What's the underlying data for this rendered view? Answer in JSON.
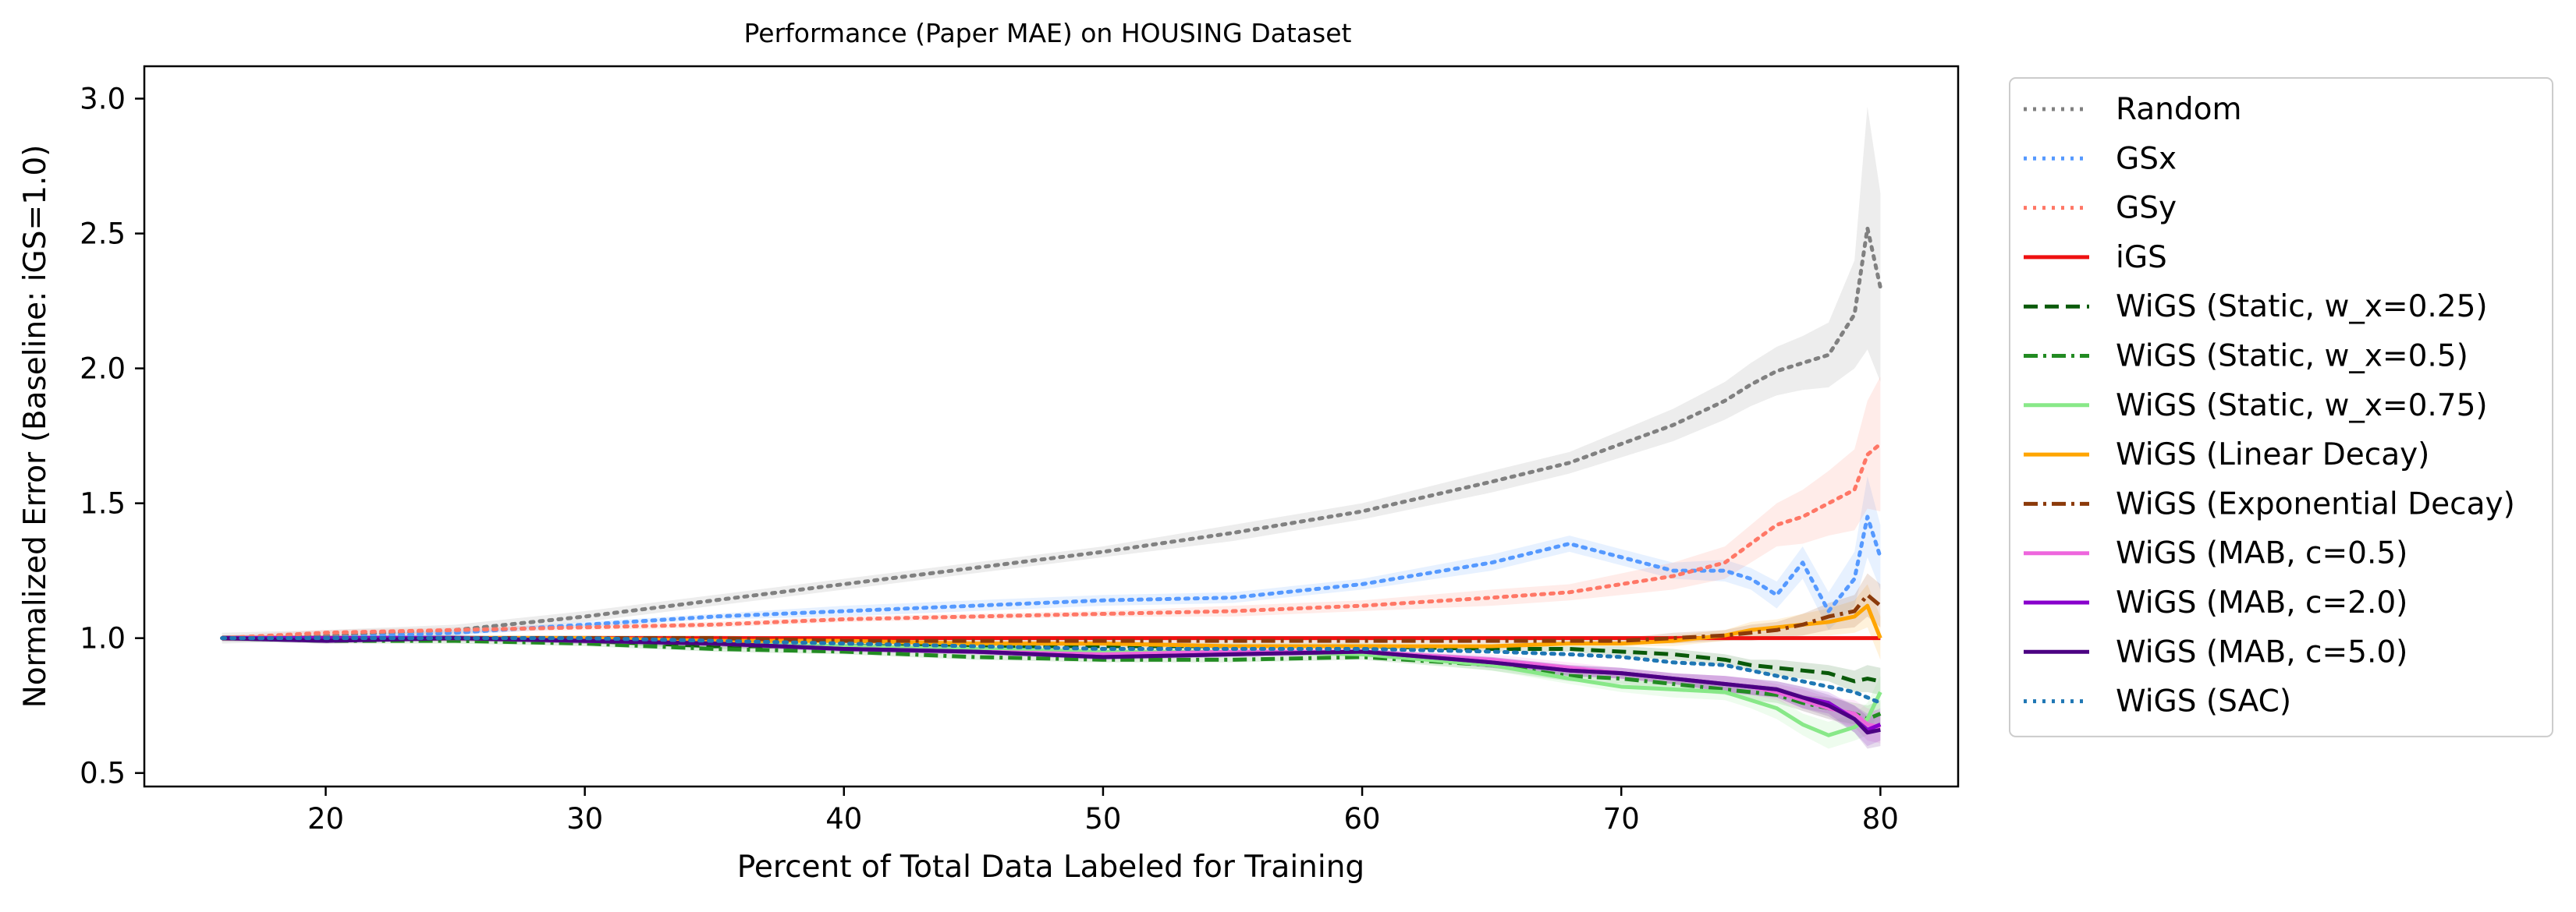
{
  "chart_data": {
    "type": "line",
    "title": "Performance (Paper MAE) on HOUSING Dataset",
    "xlabel": "Percent of Total Data Labeled for Training",
    "ylabel": "Normalized Error (Baseline: iGS=1.0)",
    "xlim": [
      13,
      83
    ],
    "ylim": [
      0.45,
      3.12
    ],
    "xticks": [
      20,
      30,
      40,
      50,
      60,
      70,
      80
    ],
    "yticks": [
      0.5,
      1.0,
      1.5,
      2.0,
      2.5,
      3.0
    ],
    "ytick_labels": [
      "0.5",
      "1.0",
      "1.5",
      "2.0",
      "2.5",
      "3.0"
    ],
    "grid": false,
    "legend_position": "outside-right",
    "x": [
      16,
      20,
      25,
      30,
      35,
      40,
      45,
      50,
      55,
      60,
      65,
      68,
      70,
      72,
      74,
      75,
      76,
      77,
      78,
      79,
      79.5,
      80
    ],
    "series": [
      {
        "name": "Random",
        "color": "#808080",
        "style": "dotted",
        "values": [
          1.0,
          1.01,
          1.03,
          1.08,
          1.14,
          1.2,
          1.26,
          1.32,
          1.39,
          1.47,
          1.58,
          1.65,
          1.72,
          1.79,
          1.88,
          1.94,
          1.99,
          2.02,
          2.05,
          2.2,
          2.52,
          2.3
        ],
        "band": [
          0.02,
          0.02,
          0.02,
          0.02,
          0.02,
          0.02,
          0.02,
          0.02,
          0.03,
          0.03,
          0.04,
          0.04,
          0.05,
          0.06,
          0.07,
          0.08,
          0.09,
          0.1,
          0.12,
          0.2,
          0.45,
          0.35
        ]
      },
      {
        "name": "GSx",
        "color": "#5599ff",
        "style": "dotted",
        "values": [
          1.0,
          1.0,
          1.02,
          1.05,
          1.08,
          1.1,
          1.12,
          1.14,
          1.15,
          1.2,
          1.28,
          1.35,
          1.3,
          1.25,
          1.25,
          1.22,
          1.16,
          1.28,
          1.1,
          1.22,
          1.45,
          1.3
        ],
        "band": [
          0.01,
          0.01,
          0.01,
          0.01,
          0.01,
          0.02,
          0.02,
          0.02,
          0.02,
          0.02,
          0.03,
          0.03,
          0.03,
          0.03,
          0.04,
          0.04,
          0.05,
          0.06,
          0.07,
          0.1,
          0.15,
          0.12
        ]
      },
      {
        "name": "GSy",
        "color": "#ff7766",
        "style": "dotted",
        "values": [
          1.0,
          1.02,
          1.03,
          1.04,
          1.05,
          1.07,
          1.08,
          1.09,
          1.1,
          1.12,
          1.15,
          1.17,
          1.2,
          1.23,
          1.28,
          1.35,
          1.42,
          1.45,
          1.5,
          1.55,
          1.68,
          1.72
        ],
        "band": [
          0.01,
          0.01,
          0.01,
          0.01,
          0.01,
          0.01,
          0.01,
          0.01,
          0.02,
          0.02,
          0.03,
          0.03,
          0.04,
          0.05,
          0.06,
          0.07,
          0.08,
          0.1,
          0.12,
          0.15,
          0.2,
          0.25
        ]
      },
      {
        "name": "iGS",
        "color": "#ee1111",
        "style": "solid",
        "values": [
          1.0,
          1.0,
          1.0,
          1.0,
          1.0,
          1.0,
          1.0,
          1.0,
          1.0,
          1.0,
          1.0,
          1.0,
          1.0,
          1.0,
          1.0,
          1.0,
          1.0,
          1.0,
          1.0,
          1.0,
          1.0,
          1.0
        ],
        "band": null
      },
      {
        "name": "WiGS (Static, w_x=0.25)",
        "color": "#0a5a0a",
        "style": "dashed",
        "values": [
          1.0,
          1.0,
          1.0,
          0.99,
          0.97,
          0.97,
          0.97,
          0.97,
          0.97,
          0.97,
          0.96,
          0.96,
          0.95,
          0.94,
          0.92,
          0.9,
          0.89,
          0.88,
          0.87,
          0.84,
          0.85,
          0.84
        ],
        "band": [
          0.01,
          0.01,
          0.01,
          0.01,
          0.01,
          0.01,
          0.01,
          0.01,
          0.01,
          0.01,
          0.01,
          0.01,
          0.02,
          0.02,
          0.02,
          0.02,
          0.03,
          0.03,
          0.03,
          0.04,
          0.05,
          0.05
        ]
      },
      {
        "name": "WiGS (Static, w_x=0.5)",
        "color": "#228b22",
        "style": "dashdot",
        "values": [
          1.0,
          0.99,
          0.99,
          0.98,
          0.96,
          0.95,
          0.93,
          0.92,
          0.92,
          0.93,
          0.9,
          0.86,
          0.85,
          0.83,
          0.81,
          0.8,
          0.79,
          0.76,
          0.74,
          0.72,
          0.7,
          0.72
        ],
        "band": [
          0.01,
          0.01,
          0.01,
          0.01,
          0.01,
          0.01,
          0.01,
          0.01,
          0.01,
          0.01,
          0.02,
          0.02,
          0.02,
          0.02,
          0.02,
          0.03,
          0.03,
          0.03,
          0.04,
          0.04,
          0.05,
          0.05
        ]
      },
      {
        "name": "WiGS (Static, w_x=0.75)",
        "color": "#88e888",
        "style": "solid",
        "values": [
          1.0,
          1.0,
          1.0,
          0.99,
          0.98,
          0.97,
          0.96,
          0.95,
          0.95,
          0.94,
          0.9,
          0.85,
          0.82,
          0.81,
          0.8,
          0.77,
          0.74,
          0.68,
          0.64,
          0.67,
          0.7,
          0.8
        ],
        "band": [
          0.01,
          0.01,
          0.01,
          0.01,
          0.01,
          0.01,
          0.01,
          0.01,
          0.01,
          0.01,
          0.02,
          0.02,
          0.02,
          0.03,
          0.03,
          0.03,
          0.04,
          0.04,
          0.05,
          0.05,
          0.06,
          0.06
        ]
      },
      {
        "name": "WiGS (Linear Decay)",
        "color": "#ffa500",
        "style": "solid",
        "values": [
          1.0,
          1.0,
          1.0,
          1.0,
          0.99,
          0.99,
          0.98,
          0.98,
          0.97,
          0.97,
          0.97,
          0.98,
          0.98,
          0.99,
          1.01,
          1.03,
          1.04,
          1.05,
          1.06,
          1.08,
          1.12,
          1.0
        ],
        "band": [
          0.01,
          0.01,
          0.01,
          0.01,
          0.01,
          0.01,
          0.01,
          0.01,
          0.01,
          0.01,
          0.01,
          0.01,
          0.01,
          0.02,
          0.02,
          0.03,
          0.03,
          0.04,
          0.05,
          0.06,
          0.08,
          0.08
        ]
      },
      {
        "name": "WiGS (Exponential Decay)",
        "color": "#8b3a0a",
        "style": "dashdot",
        "values": [
          1.0,
          1.0,
          1.0,
          1.0,
          1.0,
          0.99,
          0.99,
          0.99,
          0.99,
          0.99,
          0.99,
          0.99,
          0.99,
          1.0,
          1.01,
          1.02,
          1.03,
          1.05,
          1.08,
          1.1,
          1.16,
          1.12
        ],
        "band": [
          0.01,
          0.01,
          0.01,
          0.01,
          0.01,
          0.01,
          0.01,
          0.01,
          0.01,
          0.01,
          0.01,
          0.01,
          0.01,
          0.02,
          0.02,
          0.03,
          0.03,
          0.04,
          0.05,
          0.06,
          0.08,
          0.08
        ]
      },
      {
        "name": "WiGS (MAB, c=0.5)",
        "color": "#ee66dd",
        "style": "solid",
        "values": [
          1.0,
          1.0,
          1.0,
          0.99,
          0.98,
          0.96,
          0.95,
          0.94,
          0.95,
          0.95,
          0.92,
          0.89,
          0.87,
          0.85,
          0.83,
          0.82,
          0.8,
          0.77,
          0.74,
          0.72,
          0.68,
          0.67
        ],
        "band": [
          0.01,
          0.01,
          0.01,
          0.01,
          0.01,
          0.01,
          0.01,
          0.01,
          0.01,
          0.01,
          0.02,
          0.02,
          0.02,
          0.02,
          0.03,
          0.03,
          0.03,
          0.04,
          0.04,
          0.05,
          0.06,
          0.06
        ]
      },
      {
        "name": "WiGS (MAB, c=2.0)",
        "color": "#8800cc",
        "style": "solid",
        "values": [
          1.0,
          1.0,
          1.0,
          0.99,
          0.98,
          0.96,
          0.95,
          0.93,
          0.94,
          0.95,
          0.91,
          0.88,
          0.87,
          0.85,
          0.83,
          0.82,
          0.81,
          0.78,
          0.76,
          0.7,
          0.66,
          0.68
        ],
        "band": [
          0.01,
          0.01,
          0.01,
          0.01,
          0.01,
          0.01,
          0.01,
          0.01,
          0.01,
          0.01,
          0.02,
          0.02,
          0.02,
          0.02,
          0.03,
          0.03,
          0.03,
          0.04,
          0.04,
          0.05,
          0.06,
          0.06
        ]
      },
      {
        "name": "WiGS (MAB, c=5.0)",
        "color": "#4b0082",
        "style": "solid",
        "values": [
          1.0,
          0.99,
          1.0,
          0.99,
          0.98,
          0.96,
          0.95,
          0.93,
          0.94,
          0.95,
          0.91,
          0.88,
          0.87,
          0.85,
          0.83,
          0.82,
          0.81,
          0.78,
          0.75,
          0.7,
          0.65,
          0.66
        ],
        "band": [
          0.01,
          0.01,
          0.01,
          0.01,
          0.01,
          0.01,
          0.01,
          0.01,
          0.01,
          0.01,
          0.02,
          0.02,
          0.02,
          0.02,
          0.03,
          0.03,
          0.03,
          0.04,
          0.04,
          0.05,
          0.06,
          0.06
        ]
      },
      {
        "name": "WiGS (SAC)",
        "color": "#1f77b4",
        "style": "dotted",
        "values": [
          1.0,
          1.0,
          1.0,
          1.0,
          0.99,
          0.98,
          0.97,
          0.96,
          0.96,
          0.96,
          0.95,
          0.94,
          0.93,
          0.91,
          0.9,
          0.88,
          0.86,
          0.84,
          0.82,
          0.8,
          0.78,
          0.76
        ],
        "band": null
      }
    ]
  }
}
